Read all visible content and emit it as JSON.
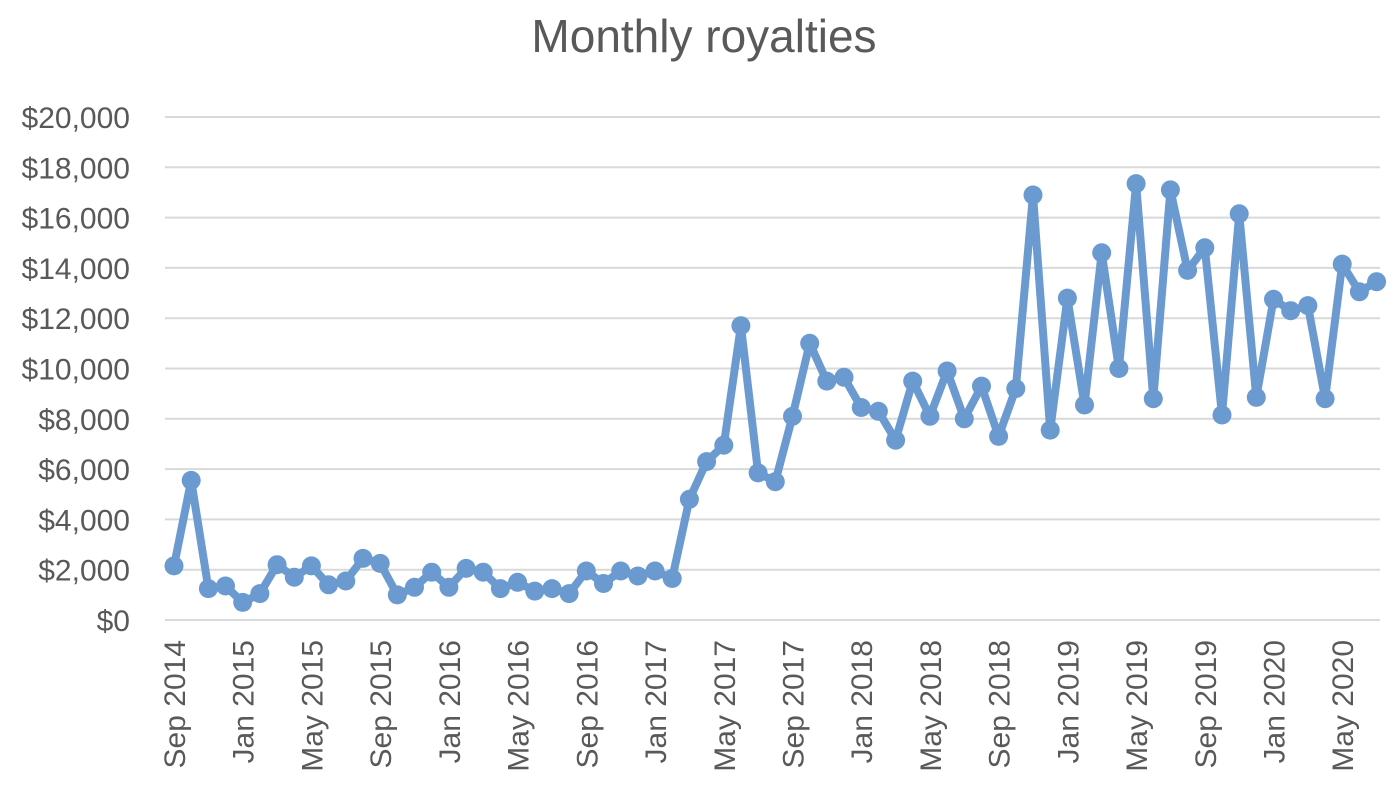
{
  "chart_data": {
    "type": "line",
    "title": "Monthly royalties",
    "xlabel": "",
    "ylabel": "",
    "ylim": [
      0,
      20000
    ],
    "y_ticks": [
      "$0",
      "$2,000",
      "$4,000",
      "$6,000",
      "$8,000",
      "$10,000",
      "$12,000",
      "$14,000",
      "$16,000",
      "$18,000",
      "$20,000"
    ],
    "x_tick_labels": [
      "Sep 2014",
      "Jan 2015",
      "May 2015",
      "Sep 2015",
      "Jan 2016",
      "May 2016",
      "Sep 2016",
      "Jan 2017",
      "May 2017",
      "Sep 2017",
      "Jan 2018",
      "May 2018",
      "Sep 2018",
      "Jan 2019",
      "May 2019",
      "Sep 2019",
      "Jan 2020",
      "May 2020"
    ],
    "x_tick_every": 4,
    "grid": true,
    "legend": "none",
    "marker": "circle",
    "color": "#6a9ad0",
    "series": [
      {
        "values": [
          2150,
          5550,
          1250,
          1350,
          700,
          1050,
          2200,
          1700,
          2150,
          1400,
          1550,
          2450,
          2250,
          1000,
          1300,
          1900,
          1300,
          2050,
          1900,
          1250,
          1500,
          1150,
          1250,
          1050,
          1950,
          1450,
          1950,
          1750,
          1950,
          1650,
          4800,
          6300,
          6950,
          11700,
          5850,
          5500,
          8100,
          11000,
          9500,
          9650,
          8450,
          8300,
          7150,
          9500,
          8100,
          9900,
          8000,
          9300,
          7300,
          9200,
          16900,
          7550,
          12800,
          8550,
          14600,
          10000,
          17350,
          8800,
          17100,
          13900,
          14800,
          8150,
          16150,
          8850,
          12750,
          12300,
          12500,
          8800,
          14150,
          13050,
          13450
        ]
      }
    ]
  }
}
